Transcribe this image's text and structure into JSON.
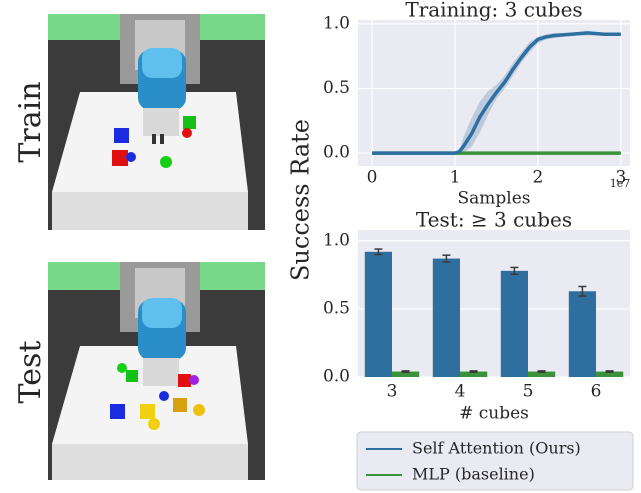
{
  "image_labels": [
    "Train",
    "Test"
  ],
  "y_label": "Success Rate",
  "chart_data": [
    {
      "type": "line",
      "title": "Training: 3 cubes",
      "x_label": "Samples",
      "x_multiplier": "1e7",
      "x": [
        0,
        0.5,
        1.0,
        1.05,
        1.1,
        1.2,
        1.3,
        1.4,
        1.5,
        1.6,
        1.7,
        1.8,
        1.9,
        2.0,
        2.1,
        2.2,
        2.4,
        2.6,
        2.8,
        3.0
      ],
      "series": [
        {
          "name": "Self Attention (Ours)",
          "color": "#2f6fa0",
          "values": [
            0,
            0,
            0,
            0.01,
            0.05,
            0.15,
            0.28,
            0.38,
            0.47,
            0.55,
            0.65,
            0.74,
            0.82,
            0.88,
            0.9,
            0.91,
            0.92,
            0.93,
            0.92,
            0.92
          ],
          "ci_lower": [
            0,
            0,
            0,
            0,
            0,
            0.05,
            0.16,
            0.3,
            0.42,
            0.5,
            0.6,
            0.7,
            0.78,
            0.85,
            0.88,
            0.89,
            0.91,
            0.91,
            0.91,
            0.91
          ],
          "ci_upper": [
            0,
            0,
            0,
            0.02,
            0.12,
            0.27,
            0.4,
            0.48,
            0.53,
            0.6,
            0.7,
            0.78,
            0.86,
            0.9,
            0.92,
            0.93,
            0.93,
            0.94,
            0.93,
            0.93
          ]
        },
        {
          "name": "MLP (baseline)",
          "color": "#3a923a",
          "values": [
            0,
            0,
            0,
            0,
            0,
            0,
            0,
            0,
            0,
            0,
            0,
            0,
            0,
            0,
            0,
            0,
            0,
            0,
            0,
            0
          ]
        }
      ],
      "xlim": [
        -0.17,
        3.11
      ],
      "xticks": [
        0,
        1,
        2,
        3
      ],
      "ylim": [
        -0.1,
        1.03
      ],
      "yticks": [
        {
          "value": 0,
          "label": "0.0"
        },
        {
          "value": 0.5,
          "label": "0.5"
        },
        {
          "value": 1,
          "label": "1.0"
        }
      ],
      "grid": true
    },
    {
      "type": "bar",
      "title": "Test: ≥ 3 cubes",
      "x_label": "# cubes",
      "categories": [
        "3",
        "4",
        "5",
        "6"
      ],
      "series": [
        {
          "name": "Self Attention (Ours)",
          "color": "#2f6fa0",
          "values": [
            0.92,
            0.87,
            0.78,
            0.63
          ],
          "errors": [
            0.02,
            0.025,
            0.025,
            0.035
          ]
        },
        {
          "name": "MLP (baseline)",
          "color": "#3a923a",
          "values": [
            0.04,
            0.04,
            0.04,
            0.04
          ],
          "errors": [
            0.005,
            0.005,
            0.005,
            0.005
          ]
        }
      ],
      "ylim": [
        0,
        1.08
      ],
      "yticks": [
        {
          "value": 0,
          "label": "0.0"
        },
        {
          "value": 0.5,
          "label": "0.5"
        },
        {
          "value": 1,
          "label": "1.0"
        }
      ],
      "grid": true
    }
  ]
}
